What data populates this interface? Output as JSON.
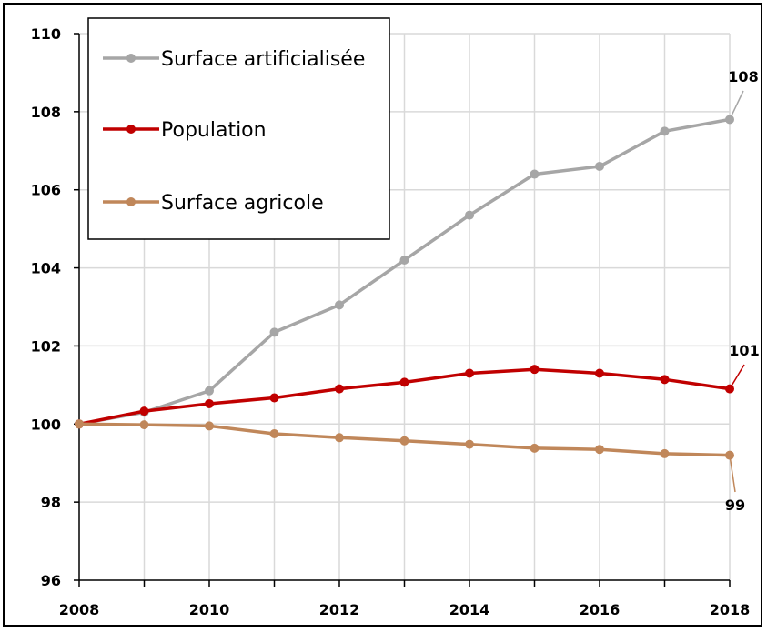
{
  "chart_data": {
    "type": "line",
    "x": [
      2008,
      2009,
      2010,
      2011,
      2012,
      2013,
      2014,
      2015,
      2016,
      2017,
      2018
    ],
    "x_ticks": [
      "2008",
      "2010",
      "2012",
      "2014",
      "2016",
      "2018"
    ],
    "y_ticks": [
      "96",
      "98",
      "100",
      "102",
      "104",
      "106",
      "108",
      "110"
    ],
    "ylim": [
      96,
      110
    ],
    "xlim": [
      2008,
      2018
    ],
    "grid": true,
    "legend_position": "top-left",
    "series": [
      {
        "name": "Surface artificialisée",
        "color": "#a6a6a6",
        "values": [
          100.0,
          100.3,
          100.85,
          102.35,
          103.05,
          104.2,
          105.35,
          106.4,
          106.6,
          107.5,
          107.8
        ],
        "end_label": "108"
      },
      {
        "name": "Population",
        "color": "#c00000",
        "values": [
          100.0,
          100.33,
          100.52,
          100.67,
          100.9,
          101.07,
          101.3,
          101.4,
          101.3,
          101.14,
          100.9
        ],
        "end_label": "101"
      },
      {
        "name": "Surface agricole",
        "color": "#c0875a",
        "values": [
          100.0,
          99.98,
          99.95,
          99.75,
          99.65,
          99.57,
          99.48,
          99.38,
          99.35,
          99.24,
          99.2
        ],
        "end_label": "99"
      }
    ]
  }
}
